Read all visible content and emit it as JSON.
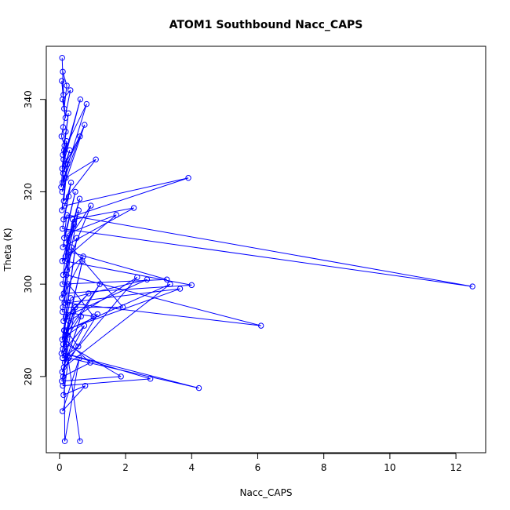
{
  "chart_data": {
    "type": "line",
    "title": "ATOM1 Southbound Nacc_CAPS",
    "xlabel": "Nacc_CAPS",
    "ylabel": "Theta (K)",
    "xlim": [
      -0.4,
      12.9
    ],
    "ylim": [
      263.5,
      351.5
    ],
    "xticks": [
      0,
      2,
      4,
      6,
      8,
      10,
      12
    ],
    "yticks": [
      280,
      300,
      320,
      340
    ],
    "grid": false,
    "legend": "none",
    "color": "#0000ff",
    "marker": "open-circle",
    "series": [
      {
        "x": [
          0.08,
          0.12,
          0.1,
          0.22,
          0.14,
          0.07,
          0.18,
          0.09,
          0.33,
          0.11,
          0.06,
          0.15,
          0.27,
          0.1,
          0.19,
          0.08,
          0.63,
          0.12,
          0.21,
          0.09,
          0.82,
          0.14,
          0.05,
          0.62,
          0.17,
          0.31,
          0.11,
          0.76,
          0.08,
          0.24,
          0.13,
          1.1,
          0.19,
          0.07,
          0.28,
          0.12,
          3.9,
          0.16,
          0.35,
          0.09,
          12.5,
          0.22,
          0.14,
          0.48,
          0.1,
          2.25,
          0.4,
          0.18,
          0.61,
          0.08,
          1.72,
          0.26,
          0.11,
          0.95,
          0.2,
          0.44,
          0.09,
          3.25,
          0.3,
          0.13,
          4.0,
          0.17,
          0.58,
          0.07,
          0.72,
          0.23,
          0.1,
          1.92,
          0.36,
          0.15,
          6.1,
          0.21,
          0.09,
          1.03,
          0.27,
          0.12,
          0.88,
          0.19,
          2.65,
          0.34,
          0.08,
          0.52,
          0.14,
          3.65,
          0.25,
          0.1,
          0.69,
          0.18,
          1.22,
          0.11,
          0.42,
          0.06,
          0.75,
          0.16,
          2.35,
          0.29,
          0.09,
          0.57,
          0.2,
          3.35,
          0.13,
          0.65,
          0.08,
          1.15,
          0.24,
          0.11,
          0.93,
          0.17,
          0.48,
          0.07,
          1.86,
          0.22,
          0.1,
          2.75,
          0.15,
          4.22,
          0.28,
          0.12,
          0.78,
          0.09,
          0.6,
          0.16,
          0.14,
          0.62
        ],
        "y": [
          349,
          341,
          346,
          343,
          338,
          344,
          336,
          340,
          342,
          334,
          332,
          330,
          337,
          328,
          333,
          325,
          340,
          327,
          331,
          322,
          339,
          329,
          321,
          332,
          326,
          329,
          324,
          334.5,
          320,
          326,
          318,
          327,
          323,
          316,
          319,
          314,
          323,
          317,
          322,
          312,
          299.5,
          315,
          310,
          320,
          308,
          316.5,
          314,
          306,
          318.5,
          305,
          315,
          311,
          302,
          317,
          309,
          313,
          300,
          301,
          307,
          298,
          299.8,
          305,
          316,
          297,
          306,
          303,
          295,
          295,
          308,
          296,
          291,
          302,
          294,
          293,
          300,
          292,
          298,
          293,
          301,
          297,
          288,
          310,
          290,
          299,
          296,
          286,
          305,
          289,
          300,
          287,
          294,
          285,
          291,
          283,
          301.5,
          292,
          284,
          286.5,
          290,
          300,
          282,
          293,
          281,
          293.5,
          289,
          280,
          283,
          288,
          295,
          279,
          280,
          287,
          278,
          279.5,
          285,
          277.5,
          284,
          276,
          278,
          272.5,
          284,
          266,
          290,
          266
        ]
      }
    ]
  }
}
